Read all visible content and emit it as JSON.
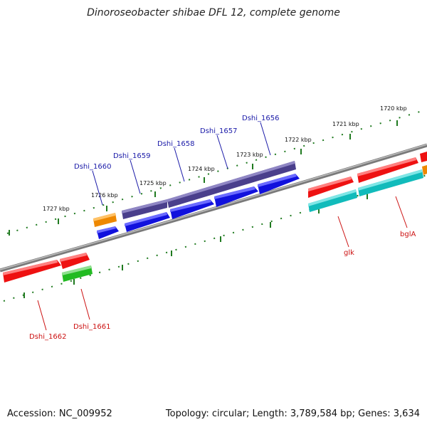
{
  "title": "Dinoroseobacter shibae DFL 12, complete genome",
  "footer": {
    "accession": "Accession: NC_009952",
    "summary": "Topology: circular; Length: 3,789,584 bp; Genes: 3,634"
  },
  "scale_labels": [
    "1720 kbp",
    "1721 kbp",
    "1722 kbp",
    "1723 kbp",
    "1724 kbp",
    "1725 kbp",
    "1726 kbp",
    "1727 kbp"
  ],
  "genes_top": [
    "Dshi_1656",
    "Dshi_1657",
    "Dshi_1658",
    "Dshi_1659",
    "Dshi_1660"
  ],
  "genes_bottom": [
    "glk",
    "bglA",
    "Dshi_1662",
    "Dshi_1661"
  ],
  "colors": {
    "label_top": "#1a1aa8",
    "label_bottom": "#cc1111",
    "scale": "#1f7a1f",
    "backbone": "#7a7a7a",
    "gene_red": "#ee1111",
    "gene_blue": "#1111dd",
    "gene_purple": "#4a3f8c",
    "gene_orange": "#ee8800",
    "gene_cyan": "#11bbbb",
    "gene_green": "#22bb22"
  }
}
